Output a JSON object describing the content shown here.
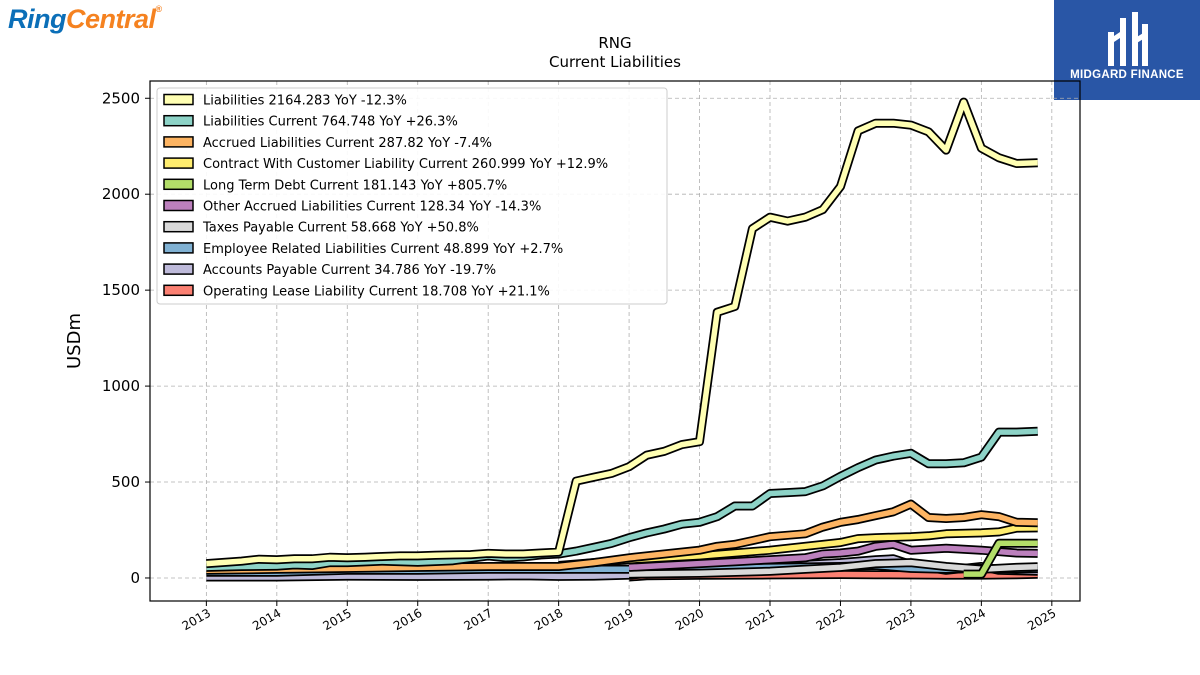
{
  "branding": {
    "company_part1": "Ring",
    "company_part2": "Central",
    "company_mark": "®",
    "watermark": "MIDGARD FINANCE"
  },
  "chart_data": {
    "type": "line",
    "title": "RNG",
    "subtitle": "Current  Liabilities",
    "ylabel": "USDm",
    "xlabel": "",
    "ylim": [
      -120,
      2590
    ],
    "xlim": [
      2012.2,
      2025.4
    ],
    "yticks": [
      0,
      500,
      1000,
      1500,
      2000,
      2500
    ],
    "xticks": [
      "2013",
      "2014",
      "2015",
      "2016",
      "2017",
      "2018",
      "2019",
      "2020",
      "2021",
      "2022",
      "2023",
      "2024",
      "2025"
    ],
    "grid": true,
    "legend_position": "top-left",
    "series": [
      {
        "name": "Liabilities",
        "legend": "Liabilities  2164.283 YoY -12.3%",
        "color": "#ffffb3",
        "points": [
          [
            2013.0,
            75
          ],
          [
            2013.5,
            88
          ],
          [
            2013.75,
            98
          ],
          [
            2014.0,
            95
          ],
          [
            2014.25,
            100
          ],
          [
            2014.5,
            100
          ],
          [
            2014.75,
            108
          ],
          [
            2015.0,
            105
          ],
          [
            2015.25,
            108
          ],
          [
            2015.5,
            112
          ],
          [
            2015.75,
            115
          ],
          [
            2016.0,
            115
          ],
          [
            2016.25,
            118
          ],
          [
            2016.5,
            120
          ],
          [
            2016.75,
            122
          ],
          [
            2017.0,
            128
          ],
          [
            2017.25,
            125
          ],
          [
            2017.5,
            125
          ],
          [
            2017.75,
            130
          ],
          [
            2018.0,
            135
          ],
          [
            2018.25,
            505
          ],
          [
            2018.5,
            525
          ],
          [
            2018.75,
            545
          ],
          [
            2019.0,
            580
          ],
          [
            2019.25,
            640
          ],
          [
            2019.5,
            660
          ],
          [
            2019.75,
            695
          ],
          [
            2020.0,
            710
          ],
          [
            2020.25,
            1385
          ],
          [
            2020.5,
            1415
          ],
          [
            2020.75,
            1820
          ],
          [
            2021.0,
            1880
          ],
          [
            2021.25,
            1860
          ],
          [
            2021.5,
            1880
          ],
          [
            2021.75,
            1920
          ],
          [
            2022.0,
            2040
          ],
          [
            2022.25,
            2330
          ],
          [
            2022.5,
            2370
          ],
          [
            2022.75,
            2370
          ],
          [
            2023.0,
            2360
          ],
          [
            2023.25,
            2325
          ],
          [
            2023.5,
            2230
          ],
          [
            2023.75,
            2480
          ],
          [
            2024.0,
            2240
          ],
          [
            2024.25,
            2190
          ],
          [
            2024.5,
            2160
          ],
          [
            2024.8,
            2164
          ]
        ]
      },
      {
        "name": "Liabilities Current",
        "legend": "Liabilities Current  764.748 YoY +26.3%",
        "color": "#8dd3c7",
        "points": [
          [
            2013.0,
            55
          ],
          [
            2013.5,
            60
          ],
          [
            2014.0,
            62
          ],
          [
            2014.25,
            68
          ],
          [
            2014.5,
            65
          ],
          [
            2014.75,
            80
          ],
          [
            2015.0,
            80
          ],
          [
            2015.5,
            88
          ],
          [
            2016.0,
            82
          ],
          [
            2016.5,
            90
          ],
          [
            2017.0,
            115
          ],
          [
            2017.25,
            105
          ],
          [
            2017.5,
            110
          ],
          [
            2017.75,
            120
          ],
          [
            2018.0,
            125
          ],
          [
            2018.25,
            140
          ],
          [
            2018.5,
            160
          ],
          [
            2018.75,
            180
          ],
          [
            2019.0,
            210
          ],
          [
            2019.25,
            235
          ],
          [
            2019.5,
            255
          ],
          [
            2019.75,
            280
          ],
          [
            2020.0,
            290
          ],
          [
            2020.25,
            320
          ],
          [
            2020.5,
            375
          ],
          [
            2020.75,
            375
          ],
          [
            2021.0,
            440
          ],
          [
            2021.25,
            445
          ],
          [
            2021.5,
            450
          ],
          [
            2021.75,
            480
          ],
          [
            2022.0,
            530
          ],
          [
            2022.25,
            575
          ],
          [
            2022.5,
            615
          ],
          [
            2022.75,
            635
          ],
          [
            2023.0,
            650
          ],
          [
            2023.25,
            595
          ],
          [
            2023.5,
            595
          ],
          [
            2023.75,
            600
          ],
          [
            2024.0,
            630
          ],
          [
            2024.25,
            760
          ],
          [
            2024.5,
            760
          ],
          [
            2024.8,
            765
          ]
        ]
      },
      {
        "name": "Accrued Liabilities Current",
        "legend": "Accrued Liabilities Current  287.82 YoY -7.4%",
        "color": "#fdb462",
        "points": [
          [
            2013.0,
            40
          ],
          [
            2014.0,
            45
          ],
          [
            2015.0,
            50
          ],
          [
            2016.0,
            55
          ],
          [
            2017.0,
            60
          ],
          [
            2018.0,
            60
          ],
          [
            2018.5,
            80
          ],
          [
            2019.0,
            105
          ],
          [
            2019.5,
            125
          ],
          [
            2020.0,
            145
          ],
          [
            2020.25,
            165
          ],
          [
            2020.5,
            175
          ],
          [
            2020.75,
            195
          ],
          [
            2021.0,
            215
          ],
          [
            2021.5,
            230
          ],
          [
            2021.75,
            265
          ],
          [
            2022.0,
            290
          ],
          [
            2022.25,
            305
          ],
          [
            2022.5,
            325
          ],
          [
            2022.75,
            345
          ],
          [
            2023.0,
            385
          ],
          [
            2023.25,
            315
          ],
          [
            2023.5,
            310
          ],
          [
            2023.75,
            315
          ],
          [
            2024.0,
            330
          ],
          [
            2024.25,
            320
          ],
          [
            2024.5,
            290
          ],
          [
            2024.8,
            288
          ]
        ]
      },
      {
        "name": "Contract With Customer Liability Current",
        "legend": "Contract With Customer Liability Current  260.999 YoY +12.9%",
        "color": "#ffed6f",
        "points": [
          [
            2018.0,
            65
          ],
          [
            2018.5,
            80
          ],
          [
            2019.0,
            95
          ],
          [
            2019.5,
            105
          ],
          [
            2020.0,
            115
          ],
          [
            2020.5,
            130
          ],
          [
            2021.0,
            145
          ],
          [
            2021.5,
            165
          ],
          [
            2022.0,
            185
          ],
          [
            2022.25,
            205
          ],
          [
            2022.5,
            210
          ],
          [
            2023.0,
            215
          ],
          [
            2023.25,
            220
          ],
          [
            2023.5,
            230
          ],
          [
            2024.0,
            235
          ],
          [
            2024.25,
            240
          ],
          [
            2024.5,
            260
          ],
          [
            2024.8,
            261
          ]
        ]
      },
      {
        "name": "Long Term Debt Current",
        "legend": "Long Term Debt Current  181.143 YoY +805.7%",
        "color": "#b3de69",
        "points": [
          [
            2023.75,
            20
          ],
          [
            2024.0,
            20
          ],
          [
            2024.25,
            181
          ],
          [
            2024.5,
            181
          ],
          [
            2024.8,
            181
          ]
        ]
      },
      {
        "name": "Other Accrued Liabilities Current",
        "legend": "Other Accrued Liabilities Current  128.34 YoY -14.3%",
        "color": "#bc80bd",
        "points": [
          [
            2019.0,
            55
          ],
          [
            2019.5,
            65
          ],
          [
            2020.0,
            75
          ],
          [
            2020.5,
            85
          ],
          [
            2021.0,
            95
          ],
          [
            2021.5,
            105
          ],
          [
            2021.75,
            125
          ],
          [
            2022.0,
            130
          ],
          [
            2022.25,
            140
          ],
          [
            2022.5,
            165
          ],
          [
            2022.75,
            175
          ],
          [
            2023.0,
            145
          ],
          [
            2023.25,
            150
          ],
          [
            2023.5,
            155
          ],
          [
            2023.75,
            150
          ],
          [
            2024.0,
            145
          ],
          [
            2024.5,
            130
          ],
          [
            2024.8,
            128
          ]
        ]
      },
      {
        "name": "Taxes Payable Current",
        "legend": "Taxes Payable Current  58.668 YoY +50.8%",
        "color": "#d9d9d9",
        "points": [
          [
            2019.0,
            20
          ],
          [
            2020.0,
            25
          ],
          [
            2021.0,
            35
          ],
          [
            2021.5,
            45
          ],
          [
            2022.0,
            55
          ],
          [
            2022.5,
            75
          ],
          [
            2023.0,
            80
          ],
          [
            2023.5,
            60
          ],
          [
            2024.0,
            45
          ],
          [
            2024.5,
            55
          ],
          [
            2024.8,
            59
          ]
        ]
      },
      {
        "name": "Employee Related Liabilities Current",
        "legend": "Employee Related Liabilities Current  48.899 YoY +2.7%",
        "color": "#80b1d3",
        "points": [
          [
            2013.0,
            30
          ],
          [
            2014.0,
            30
          ],
          [
            2014.5,
            35
          ],
          [
            2015.0,
            40
          ],
          [
            2016.0,
            40
          ],
          [
            2017.0,
            45
          ],
          [
            2018.0,
            45
          ],
          [
            2019.0,
            45
          ],
          [
            2020.0,
            50
          ],
          [
            2021.0,
            55
          ],
          [
            2022.0,
            60
          ],
          [
            2022.5,
            65
          ],
          [
            2023.0,
            50
          ],
          [
            2023.5,
            45
          ],
          [
            2024.0,
            50
          ],
          [
            2024.5,
            47
          ],
          [
            2024.8,
            49
          ]
        ]
      },
      {
        "name": "Accounts Payable Current",
        "legend": "Accounts Payable Current  34.786 YoY -19.7%",
        "color": "#bebada",
        "points": [
          [
            2013.0,
            5
          ],
          [
            2014.0,
            5
          ],
          [
            2015.0,
            10
          ],
          [
            2016.0,
            8
          ],
          [
            2017.0,
            10
          ],
          [
            2017.5,
            12
          ],
          [
            2018.0,
            8
          ],
          [
            2018.5,
            10
          ],
          [
            2019.0,
            15
          ],
          [
            2019.5,
            30
          ],
          [
            2020.0,
            40
          ],
          [
            2020.5,
            50
          ],
          [
            2021.0,
            65
          ],
          [
            2021.5,
            70
          ],
          [
            2022.0,
            80
          ],
          [
            2022.5,
            95
          ],
          [
            2022.75,
            100
          ],
          [
            2023.0,
            70
          ],
          [
            2023.5,
            40
          ],
          [
            2024.0,
            60
          ],
          [
            2024.25,
            40
          ],
          [
            2024.5,
            38
          ],
          [
            2024.8,
            35
          ]
        ]
      },
      {
        "name": "Operating Lease Liability Current",
        "legend": "Operating Lease Liability Current  18.708 YoY +21.1%",
        "color": "#fb8072",
        "points": [
          [
            2019.0,
            5
          ],
          [
            2019.25,
            12
          ],
          [
            2020.0,
            14
          ],
          [
            2021.0,
            16
          ],
          [
            2022.0,
            18
          ],
          [
            2022.5,
            17
          ],
          [
            2023.0,
            16
          ],
          [
            2023.5,
            15
          ],
          [
            2024.0,
            15
          ],
          [
            2024.5,
            17
          ],
          [
            2024.8,
            19
          ]
        ]
      }
    ]
  }
}
